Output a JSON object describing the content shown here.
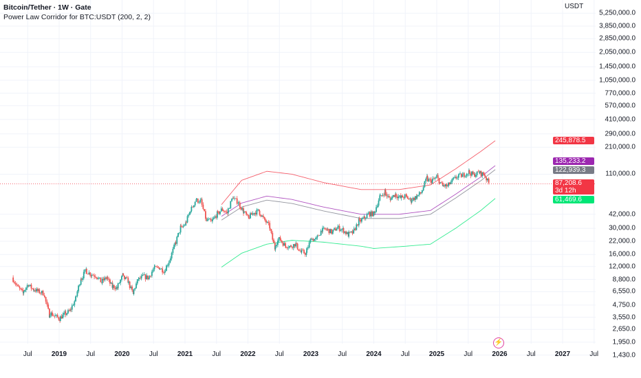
{
  "header": {
    "title": "Bitcoin/Tether · 1W · Gate",
    "indicator": "Power Law Corridor for BTC:USDT (200, 2, 2)",
    "currency": "USDT"
  },
  "tags": {
    "upper": "245,878.5",
    "mid_upper": "135,233.2",
    "mid_lower": "122,939.3",
    "price": "87,208.6",
    "countdown": "3d 12h",
    "lower": "61,469.6"
  },
  "colors": {
    "up": "#26a69a",
    "down": "#ef5350",
    "upper": "#f23645",
    "mid_upper": "#9c27b0",
    "mid_lower": "#787b86",
    "lower": "#00e676",
    "grid": "#f0f3fa"
  },
  "chart_data": {
    "type": "candlestick",
    "yscale": "log",
    "ylim": [
      1200,
      5600000
    ],
    "xlim": [
      2018.25,
      2027.5
    ],
    "y_ticks": [
      "5,250,000.0",
      "3,850,000.0",
      "2,850,000.0",
      "2,050,000.0",
      "1,450,000.0",
      "1,050,000.0",
      "770,000.0",
      "570,000.0",
      "410,000.0",
      "290,000.0",
      "210,000.0",
      "110,000.0",
      "42,000.0",
      "30,000.0",
      "22,000.0",
      "16,000.0",
      "12,000.0",
      "8,800.0",
      "6,550.0",
      "4,750.0",
      "3,550.0",
      "2,650.0",
      "1,950.0",
      "1,430.0"
    ],
    "y_tick_values": [
      5250000,
      3850000,
      2850000,
      2050000,
      1450000,
      1050000,
      770000,
      570000,
      410000,
      290000,
      210000,
      110000,
      42000,
      30000,
      22000,
      16000,
      12000,
      8800,
      6550,
      4750,
      3550,
      2650,
      1950,
      1430
    ],
    "x_ticks": [
      {
        "l": "Jul",
        "v": 2018.5
      },
      {
        "l": "2019",
        "v": 2019
      },
      {
        "l": "Jul",
        "v": 2019.5
      },
      {
        "l": "2020",
        "v": 2020
      },
      {
        "l": "Jul",
        "v": 2020.5
      },
      {
        "l": "2021",
        "v": 2021
      },
      {
        "l": "Jul",
        "v": 2021.5
      },
      {
        "l": "2022",
        "v": 2022
      },
      {
        "l": "Jul",
        "v": 2022.5
      },
      {
        "l": "2023",
        "v": 2023
      },
      {
        "l": "Jul",
        "v": 2023.5
      },
      {
        "l": "2024",
        "v": 2024
      },
      {
        "l": "Jul",
        "v": 2024.5
      },
      {
        "l": "2025",
        "v": 2025
      },
      {
        "l": "Jul",
        "v": 2025.5
      },
      {
        "l": "2026",
        "v": 2026
      },
      {
        "l": "Jul",
        "v": 2026.5
      },
      {
        "l": "2027",
        "v": 2027
      },
      {
        "l": "Jul",
        "v": 2027.5
      }
    ],
    "monthly_close_start": 2018.25,
    "monthly_close": [
      9200,
      7500,
      6400,
      7700,
      7000,
      6600,
      6300,
      4000,
      3700,
      3450,
      3800,
      4100,
      5300,
      8500,
      10800,
      10000,
      9600,
      8300,
      9150,
      7550,
      7200,
      9350,
      8600,
      6400,
      8600,
      9450,
      9150,
      11350,
      11650,
      10780,
      13800,
      19700,
      29000,
      33100,
      45200,
      58800,
      57700,
      37300,
      35000,
      41500,
      47100,
      43800,
      61300,
      57000,
      46300,
      38500,
      43200,
      45500,
      37700,
      31800,
      19900,
      23300,
      20000,
      19400,
      20500,
      17200,
      16500,
      23100,
      23100,
      28500,
      29200,
      27200,
      30500,
      29200,
      26000,
      27000,
      34500,
      37700,
      42300,
      42600,
      61100,
      71300,
      60600,
      67500,
      62700,
      64600,
      59000,
      63300,
      70200,
      96400,
      93400,
      102400,
      84300,
      82500,
      94200,
      104600,
      107100,
      115700,
      108200,
      114000,
      109500,
      87200
    ],
    "current_price": 87208.6,
    "bands": [
      {
        "name": "upper",
        "color": "#f23645",
        "points": [
          [
            2021.58,
            53000
          ],
          [
            2021.9,
            95000
          ],
          [
            2022.3,
            118000
          ],
          [
            2022.7,
            110000
          ],
          [
            2023.2,
            90000
          ],
          [
            2023.8,
            76000
          ],
          [
            2024.4,
            76000
          ],
          [
            2024.9,
            85000
          ],
          [
            2025.3,
            125000
          ],
          [
            2025.7,
            190000
          ],
          [
            2025.93,
            245878.5
          ]
        ]
      },
      {
        "name": "mid-upper",
        "color": "#9c27b0",
        "points": [
          [
            2021.58,
            40000
          ],
          [
            2021.9,
            55000
          ],
          [
            2022.3,
            65000
          ],
          [
            2022.7,
            60000
          ],
          [
            2023.2,
            50000
          ],
          [
            2023.8,
            42000
          ],
          [
            2024.4,
            42000
          ],
          [
            2024.9,
            46000
          ],
          [
            2025.3,
            68000
          ],
          [
            2025.7,
            103000
          ],
          [
            2025.93,
            135233.2
          ]
        ]
      },
      {
        "name": "mid-lower",
        "color": "#787b86",
        "points": [
          [
            2021.58,
            36500
          ],
          [
            2021.9,
            50000
          ],
          [
            2022.3,
            59000
          ],
          [
            2022.7,
            54500
          ],
          [
            2023.2,
            45500
          ],
          [
            2023.8,
            38000
          ],
          [
            2024.4,
            38000
          ],
          [
            2024.9,
            42000
          ],
          [
            2025.3,
            62000
          ],
          [
            2025.7,
            94000
          ],
          [
            2025.93,
            122939.3
          ]
        ]
      },
      {
        "name": "lower",
        "color": "#00e676",
        "points": [
          [
            2021.58,
            11800
          ],
          [
            2021.9,
            16500
          ],
          [
            2022.3,
            20500
          ],
          [
            2022.7,
            22500
          ],
          [
            2023.2,
            21500
          ],
          [
            2023.8,
            19500
          ],
          [
            2024.0,
            18500
          ],
          [
            2024.5,
            19500
          ],
          [
            2024.9,
            20500
          ],
          [
            2025.3,
            30000
          ],
          [
            2025.7,
            46000
          ],
          [
            2025.93,
            61469.6
          ]
        ]
      }
    ]
  }
}
